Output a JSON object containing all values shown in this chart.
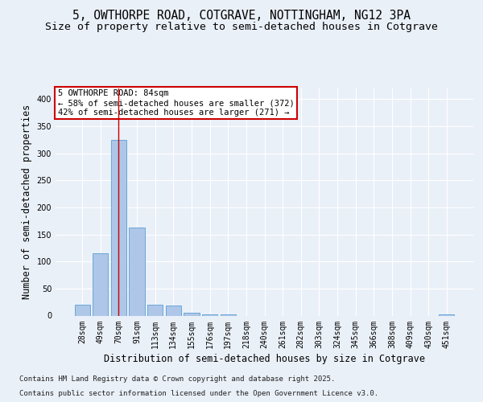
{
  "title_line1": "5, OWTHORPE ROAD, COTGRAVE, NOTTINGHAM, NG12 3PA",
  "title_line2": "Size of property relative to semi-detached houses in Cotgrave",
  "xlabel": "Distribution of semi-detached houses by size in Cotgrave",
  "ylabel": "Number of semi-detached properties",
  "categories": [
    "28sqm",
    "49sqm",
    "70sqm",
    "91sqm",
    "113sqm",
    "134sqm",
    "155sqm",
    "176sqm",
    "197sqm",
    "218sqm",
    "240sqm",
    "261sqm",
    "282sqm",
    "303sqm",
    "324sqm",
    "345sqm",
    "366sqm",
    "388sqm",
    "409sqm",
    "430sqm",
    "451sqm"
  ],
  "values": [
    20,
    115,
    325,
    163,
    20,
    18,
    5,
    2,
    2,
    0,
    0,
    0,
    0,
    0,
    0,
    0,
    0,
    0,
    0,
    0,
    2
  ],
  "bar_color": "#aec6e8",
  "bar_edge_color": "#5a9fd4",
  "vline_x": 2.0,
  "vline_color": "#cc0000",
  "annotation_title": "5 OWTHORPE ROAD: 84sqm",
  "annotation_line2": "← 58% of semi-detached houses are smaller (372)",
  "annotation_line3": "42% of semi-detached houses are larger (271) →",
  "annotation_box_color": "#ffffff",
  "annotation_box_edge": "#cc0000",
  "ylim": [
    0,
    420
  ],
  "yticks": [
    0,
    50,
    100,
    150,
    200,
    250,
    300,
    350,
    400
  ],
  "bg_color": "#eaf0f8",
  "plot_bg_color": "#eaf0f8",
  "grid_color": "#ffffff",
  "footer_line1": "Contains HM Land Registry data © Crown copyright and database right 2025.",
  "footer_line2": "Contains public sector information licensed under the Open Government Licence v3.0.",
  "title_fontsize": 10.5,
  "subtitle_fontsize": 9.5,
  "tick_fontsize": 7,
  "ylabel_fontsize": 8.5,
  "xlabel_fontsize": 8.5,
  "footer_fontsize": 6.5,
  "annot_fontsize": 7.5
}
